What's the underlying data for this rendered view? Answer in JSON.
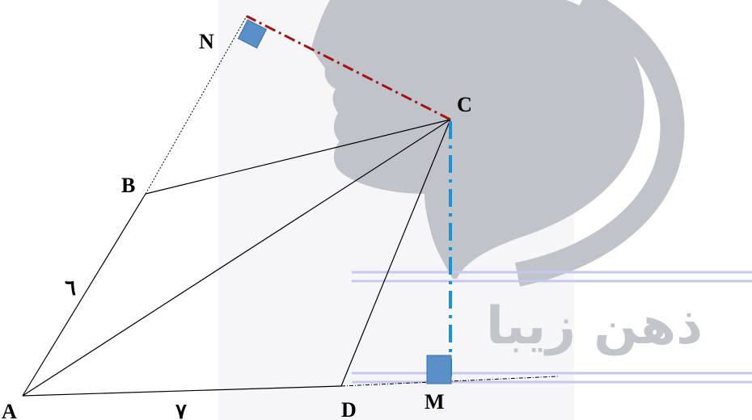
{
  "points": {
    "A": "A",
    "B": "B",
    "C": "C",
    "D": "D",
    "M": "M",
    "N": "N"
  },
  "side_lengths": {
    "AB": "٦",
    "AD": "٧"
  },
  "watermark": {
    "text": "ذهن زیبا"
  },
  "colors": {
    "outline": "#000000",
    "perpendicular_to_AB": "#a31515",
    "perpendicular_to_AD": "#1e90d6",
    "right_angle_marker": "#5b8fc7",
    "watermark_silhouette": "#c0c3c9",
    "watermark_rules": "#c5c8ee"
  }
}
